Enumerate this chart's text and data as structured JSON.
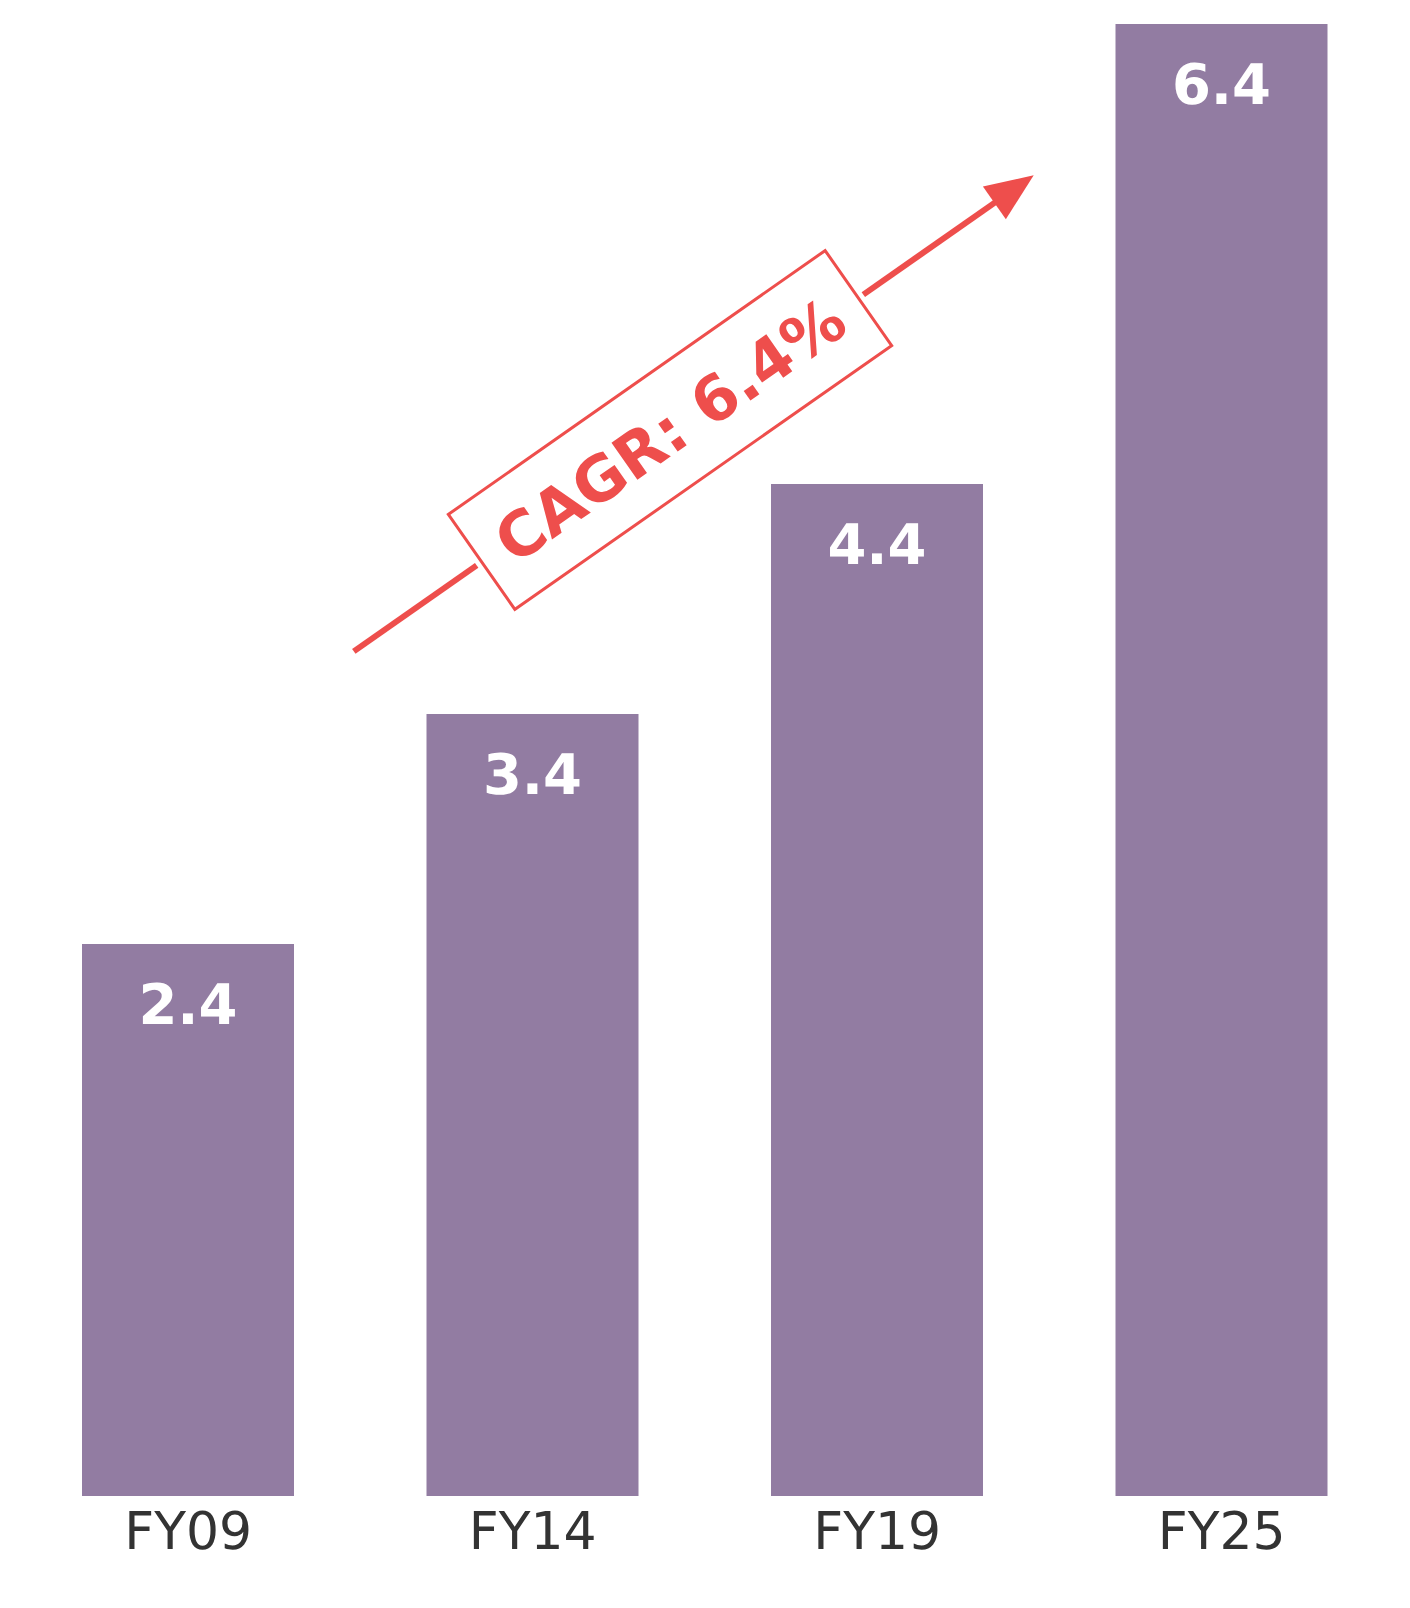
{
  "chart_data": {
    "type": "bar",
    "categories": [
      "FY09",
      "FY14",
      "FY19",
      "FY25"
    ],
    "values": [
      2.4,
      3.4,
      4.4,
      6.4
    ],
    "color": "#927ca2",
    "data_labels": true,
    "annotations": [
      "CAGR: 6.4%"
    ]
  }
}
